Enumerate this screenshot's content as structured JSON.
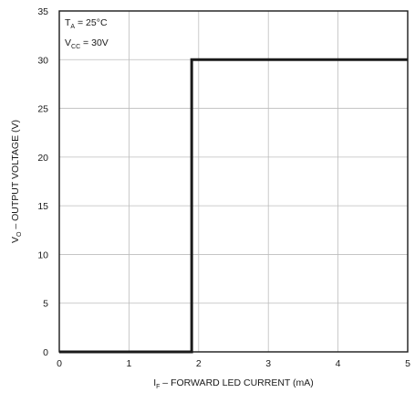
{
  "chart_data": {
    "type": "line",
    "title": "",
    "xlabel": {
      "main": "I",
      "sub": "F",
      "rest": " – FORWARD LED CURRENT (mA)"
    },
    "ylabel": {
      "main": "V",
      "sub": "O",
      "rest": " – OUTPUT VOLTAGE (V)"
    },
    "xlim": [
      0,
      5
    ],
    "ylim": [
      0,
      35
    ],
    "xticks": [
      "0",
      "1",
      "2",
      "3",
      "4",
      "5"
    ],
    "yticks": [
      "0",
      "5",
      "10",
      "15",
      "20",
      "25",
      "30",
      "35"
    ],
    "grid": true,
    "annotations": [
      {
        "main": "T",
        "sub": "A",
        "rest": " = 25°C"
      },
      {
        "main": "V",
        "sub": "CC",
        "rest": " = 30V"
      }
    ],
    "series": [
      {
        "x": [
          0,
          1.9,
          1.9,
          5
        ],
        "y": [
          0,
          0,
          30,
          30
        ]
      }
    ],
    "colors": {
      "line": "#1a1a1a",
      "grid": "#bdbdbd",
      "frame": "#1a1a1a"
    }
  }
}
